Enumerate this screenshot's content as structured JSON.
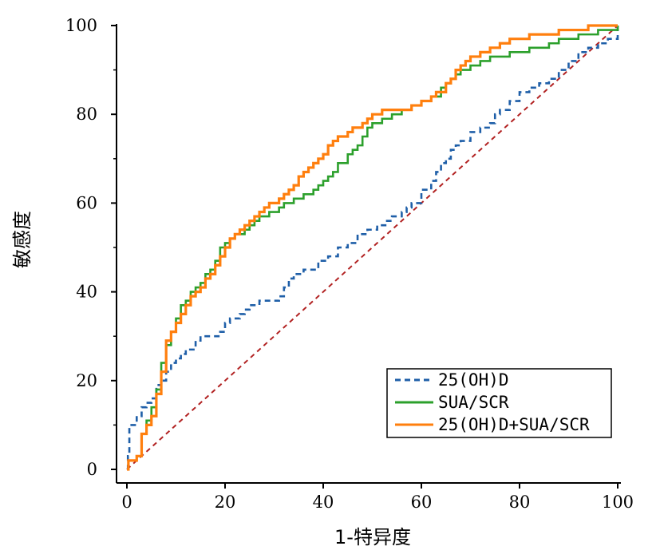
{
  "chart_data": {
    "type": "line",
    "title": "",
    "xlabel": "1-特异度",
    "ylabel": "敏感度",
    "xlim": [
      0,
      100
    ],
    "ylim": [
      0,
      100
    ],
    "xticks": [
      "0",
      "20",
      "40",
      "60",
      "80",
      "100"
    ],
    "yticks": [
      "0",
      "20",
      "40",
      "60",
      "80",
      "100"
    ],
    "grid": false,
    "legend_position": "bottom-right",
    "reference_line": {
      "x": [
        0,
        100
      ],
      "y": [
        0,
        100
      ],
      "color": "#b22222",
      "style": "dashed"
    },
    "series": [
      {
        "name": "25(OH)D",
        "color": "#1f5fa8",
        "style": "dashed",
        "x": [
          0,
          0.2,
          0.5,
          1,
          2,
          3,
          4,
          5,
          6,
          7,
          8,
          9,
          10,
          11,
          12,
          13,
          14,
          15,
          17,
          19,
          20,
          21,
          23,
          24,
          25,
          27,
          30,
          31,
          32,
          33,
          34,
          36,
          37,
          39,
          41,
          43,
          45,
          47,
          49,
          51,
          53,
          54,
          55,
          56,
          57,
          58,
          59,
          60,
          62,
          63,
          64,
          65,
          66,
          67,
          68,
          70,
          72,
          74,
          75,
          76,
          77,
          78,
          80,
          82,
          84,
          86,
          88,
          90,
          92,
          94,
          96,
          98,
          100
        ],
        "y": [
          0,
          3,
          10,
          10,
          12,
          14,
          15,
          16,
          19,
          20,
          22,
          24,
          25,
          26,
          27,
          27,
          29,
          30,
          30,
          31,
          33,
          34,
          35,
          36,
          37,
          38,
          38,
          39,
          41,
          43,
          44,
          45,
          45,
          47,
          48,
          50,
          51,
          53,
          54,
          55,
          56,
          57,
          57,
          58,
          59,
          60,
          60,
          63,
          65,
          67,
          69,
          70,
          72,
          73,
          74,
          76,
          77,
          78,
          80,
          81,
          81,
          83,
          85,
          86,
          87,
          88,
          90,
          92,
          94,
          95,
          96,
          97,
          100
        ]
      },
      {
        "name": "SUA/SCR",
        "color": "#2ca02c",
        "style": "solid",
        "x": [
          0,
          0.3,
          1,
          2,
          3,
          4,
          5,
          6,
          7,
          8,
          9,
          10,
          11,
          12,
          13,
          14,
          15,
          16,
          17,
          18,
          19,
          20,
          21,
          22,
          23,
          24,
          25,
          26,
          27,
          28,
          29,
          30,
          31,
          32,
          33,
          34,
          35,
          36,
          37,
          38,
          39,
          40,
          41,
          42,
          43,
          44,
          45,
          46,
          47,
          48,
          49,
          50,
          52,
          54,
          56,
          58,
          60,
          62,
          64,
          65,
          66,
          67,
          68,
          70,
          72,
          74,
          76,
          78,
          80,
          82,
          84,
          86,
          88,
          90,
          92,
          94,
          96,
          98,
          100
        ],
        "y": [
          0,
          2,
          2,
          3,
          8,
          11,
          14,
          18,
          24,
          28,
          31,
          34,
          37,
          38,
          40,
          41,
          42,
          44,
          45,
          47,
          50,
          51,
          52,
          53,
          53,
          54,
          55,
          56,
          57,
          57,
          58,
          58,
          59,
          60,
          60,
          61,
          61,
          62,
          62,
          63,
          64,
          65,
          66,
          67,
          69,
          69,
          71,
          72,
          73,
          75,
          77,
          78,
          79,
          80,
          81,
          82,
          83,
          84,
          86,
          87,
          88,
          89,
          90,
          91,
          92,
          93,
          93,
          94,
          94,
          95,
          95,
          96,
          97,
          97,
          98,
          98,
          99,
          99,
          100
        ]
      },
      {
        "name": "25(OH)D+SUA/SCR",
        "color": "#ff7f0e",
        "style": "solid",
        "x": [
          0,
          0.3,
          1,
          2,
          3,
          4,
          5,
          6,
          7,
          8,
          9,
          10,
          11,
          12,
          13,
          14,
          15,
          16,
          17,
          18,
          19,
          20,
          21,
          22,
          23,
          24,
          25,
          26,
          27,
          28,
          29,
          30,
          31,
          32,
          33,
          34,
          35,
          36,
          37,
          38,
          39,
          40,
          41,
          42,
          43,
          44,
          45,
          46,
          47,
          48,
          49,
          50,
          52,
          54,
          56,
          58,
          60,
          62,
          63,
          64,
          65,
          66,
          67,
          68,
          69,
          70,
          72,
          74,
          76,
          78,
          80,
          82,
          84,
          86,
          88,
          90,
          92,
          94,
          96,
          98,
          100
        ],
        "y": [
          0,
          2,
          2,
          3,
          8,
          10,
          12,
          17,
          22,
          29,
          31,
          33,
          35,
          37,
          39,
          40,
          41,
          43,
          44,
          46,
          48,
          50,
          52,
          53,
          54,
          55,
          56,
          57,
          58,
          59,
          60,
          60,
          61,
          62,
          63,
          64,
          66,
          67,
          68,
          69,
          70,
          71,
          73,
          74,
          75,
          75,
          76,
          77,
          77,
          78,
          79,
          80,
          81,
          81,
          81,
          82,
          83,
          84,
          85,
          85,
          87,
          88,
          90,
          91,
          92,
          93,
          94,
          95,
          96,
          97,
          97,
          98,
          98,
          98,
          99,
          99,
          99,
          100,
          100,
          100,
          100
        ]
      }
    ]
  }
}
